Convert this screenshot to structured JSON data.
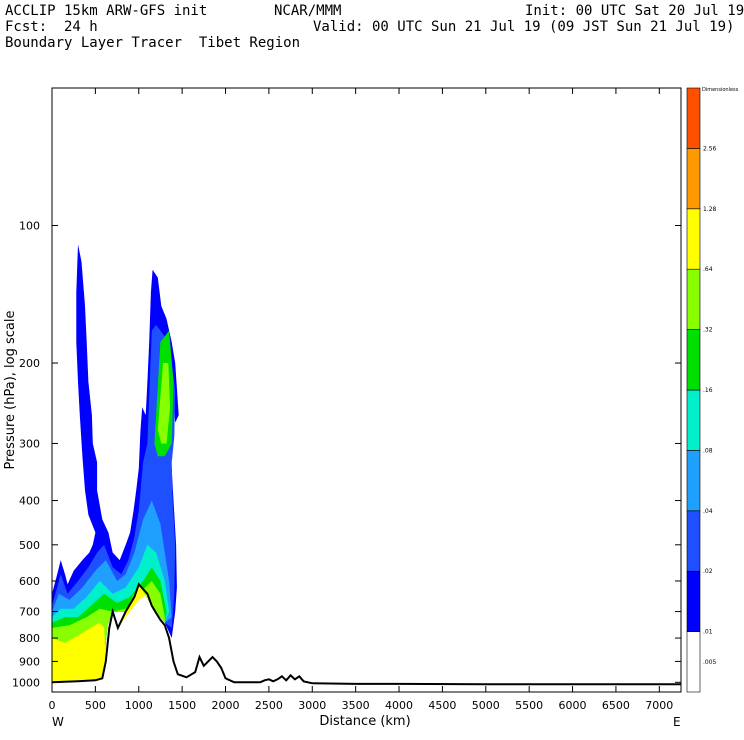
{
  "header": {
    "model": "ACCLIP 15km ARW-GFS init",
    "org": "NCAR/MMM",
    "init": "Init: 00 UTC Sat 20 Jul 19",
    "fcst": "Fcst:  24 h",
    "valid": "Valid: 00 UTC Sun 21 Jul 19 (09 JST Sun 21 Jul 19)",
    "field": "Boundary Layer Tracer  Tibet Region"
  },
  "chart_data": {
    "type": "heatmap",
    "title": "Boundary Layer Tracer  Tibet Region",
    "xlabel": "Distance (km)",
    "ylabel": "Pressure (hPa), log scale",
    "x_ticks": [
      0,
      500,
      1000,
      1500,
      2000,
      2500,
      3000,
      3500,
      4000,
      4500,
      5000,
      5500,
      6000,
      6500,
      7000
    ],
    "xlim": [
      0,
      7250
    ],
    "y_ticks": [
      100,
      200,
      300,
      400,
      500,
      600,
      700,
      800,
      900,
      1000
    ],
    "ylim": [
      1050,
      50
    ],
    "y_scale": "log",
    "x_end_labels": {
      "left": "W",
      "right": "E"
    },
    "colorbar": {
      "title": "Dimensionless",
      "levels": [
        ".005",
        ".01",
        ".02",
        ".04",
        ".08",
        ".16",
        ".32",
        ".64",
        "1.28",
        "2.56"
      ],
      "colors": [
        "#ffffff",
        "#0000ff",
        "#1e50ff",
        "#1fa0ff",
        "#00f0cc",
        "#00e000",
        "#88ff00",
        "#ffff00",
        "#ff9900",
        "#ff5000"
      ]
    },
    "terrain": {
      "x": [
        0,
        300,
        500,
        580,
        620,
        660,
        700,
        760,
        850,
        950,
        1000,
        1050,
        1100,
        1150,
        1200,
        1250,
        1300,
        1350,
        1400,
        1450,
        1550,
        1650,
        1700,
        1750,
        1800,
        1850,
        1900,
        1950,
        2000,
        2100,
        2200,
        2300,
        2400,
        2450,
        2500,
        2550,
        2600,
        2650,
        2700,
        2750,
        2800,
        2850,
        2900,
        3000,
        3500,
        4000,
        5000,
        6000,
        7000,
        7250
      ],
      "p": [
        1000,
        995,
        990,
        980,
        900,
        760,
        700,
        760,
        700,
        650,
        610,
        625,
        640,
        680,
        705,
        730,
        750,
        800,
        900,
        960,
        975,
        950,
        880,
        920,
        900,
        880,
        900,
        930,
        980,
        1000,
        1000,
        1000,
        1000,
        990,
        985,
        995,
        985,
        970,
        990,
        965,
        985,
        970,
        995,
        1005,
        1008,
        1008,
        1010,
        1010,
        1010,
        1010
      ]
    },
    "tracer_regions": [
      {
        "level": ".01",
        "outline": [
          [
            0,
            1000
          ],
          [
            0,
            640
          ],
          [
            60,
            580
          ],
          [
            100,
            540
          ],
          [
            150,
            580
          ],
          [
            180,
            610
          ],
          [
            250,
            570
          ],
          [
            350,
            540
          ],
          [
            430,
            520
          ],
          [
            470,
            500
          ],
          [
            500,
            470
          ],
          [
            420,
            430
          ],
          [
            380,
            380
          ],
          [
            350,
            320
          ],
          [
            320,
            260
          ],
          [
            300,
            220
          ],
          [
            280,
            180
          ],
          [
            280,
            140
          ],
          [
            300,
            110
          ],
          [
            340,
            120
          ],
          [
            380,
            150
          ],
          [
            400,
            180
          ],
          [
            420,
            220
          ],
          [
            460,
            260
          ],
          [
            470,
            300
          ],
          [
            520,
            330
          ],
          [
            520,
            380
          ],
          [
            580,
            440
          ],
          [
            650,
            470
          ],
          [
            700,
            520
          ],
          [
            780,
            540
          ],
          [
            850,
            500
          ],
          [
            900,
            470
          ],
          [
            940,
            420
          ],
          [
            970,
            380
          ],
          [
            1000,
            340
          ],
          [
            1020,
            280
          ],
          [
            1040,
            250
          ],
          [
            1080,
            260
          ],
          [
            1100,
            220
          ],
          [
            1120,
            180
          ],
          [
            1140,
            140
          ],
          [
            1160,
            125
          ],
          [
            1220,
            130
          ],
          [
            1260,
            150
          ],
          [
            1320,
            160
          ],
          [
            1380,
            180
          ],
          [
            1420,
            200
          ],
          [
            1460,
            260
          ],
          [
            1420,
            270
          ],
          [
            1400,
            240
          ],
          [
            1380,
            270
          ],
          [
            1360,
            300
          ],
          [
            1380,
            340
          ],
          [
            1400,
            400
          ],
          [
            1430,
            500
          ],
          [
            1440,
            620
          ],
          [
            1420,
            700
          ],
          [
            1380,
            800
          ],
          [
            1300,
            740
          ],
          [
            1150,
            680
          ],
          [
            1000,
            610
          ],
          [
            850,
            700
          ],
          [
            700,
            700
          ],
          [
            640,
            750
          ],
          [
            580,
            980
          ],
          [
            300,
            995
          ]
        ]
      },
      {
        "level": ".02",
        "outline": [
          [
            0,
            1000
          ],
          [
            0,
            680
          ],
          [
            60,
            620
          ],
          [
            100,
            580
          ],
          [
            180,
            640
          ],
          [
            300,
            600
          ],
          [
            420,
            560
          ],
          [
            520,
            520
          ],
          [
            600,
            500
          ],
          [
            700,
            560
          ],
          [
            800,
            580
          ],
          [
            880,
            540
          ],
          [
            950,
            480
          ],
          [
            1000,
            420
          ],
          [
            1050,
            330
          ],
          [
            1100,
            300
          ],
          [
            1150,
            170
          ],
          [
            1200,
            165
          ],
          [
            1300,
            175
          ],
          [
            1380,
            200
          ],
          [
            1420,
            230
          ],
          [
            1410,
            290
          ],
          [
            1380,
            330
          ],
          [
            1390,
            400
          ],
          [
            1420,
            500
          ],
          [
            1410,
            640
          ],
          [
            1380,
            760
          ],
          [
            1300,
            740
          ],
          [
            1150,
            680
          ],
          [
            1000,
            610
          ],
          [
            850,
            700
          ],
          [
            700,
            700
          ],
          [
            640,
            750
          ],
          [
            580,
            980
          ],
          [
            300,
            995
          ]
        ]
      },
      {
        "level": ".04",
        "outline": [
          [
            0,
            1000
          ],
          [
            0,
            700
          ],
          [
            80,
            640
          ],
          [
            200,
            660
          ],
          [
            350,
            620
          ],
          [
            500,
            570
          ],
          [
            620,
            540
          ],
          [
            750,
            600
          ],
          [
            850,
            580
          ],
          [
            950,
            520
          ],
          [
            1050,
            440
          ],
          [
            1150,
            400
          ],
          [
            1250,
            450
          ],
          [
            1300,
            520
          ],
          [
            1350,
            600
          ],
          [
            1380,
            720
          ],
          [
            1300,
            740
          ],
          [
            1150,
            680
          ],
          [
            1000,
            610
          ],
          [
            850,
            700
          ],
          [
            700,
            700
          ],
          [
            640,
            750
          ],
          [
            580,
            980
          ],
          [
            300,
            995
          ]
        ]
      },
      {
        "level": ".08",
        "outline": [
          [
            0,
            1000
          ],
          [
            0,
            720
          ],
          [
            100,
            690
          ],
          [
            250,
            690
          ],
          [
            400,
            650
          ],
          [
            550,
            600
          ],
          [
            700,
            640
          ],
          [
            850,
            620
          ],
          [
            1000,
            560
          ],
          [
            1100,
            500
          ],
          [
            1200,
            520
          ],
          [
            1300,
            600
          ],
          [
            1350,
            700
          ],
          [
            1300,
            740
          ],
          [
            1150,
            680
          ],
          [
            1000,
            610
          ],
          [
            850,
            700
          ],
          [
            700,
            700
          ],
          [
            640,
            750
          ],
          [
            580,
            980
          ],
          [
            300,
            995
          ]
        ]
      },
      {
        "level": ".16",
        "outline": [
          [
            0,
            1000
          ],
          [
            0,
            740
          ],
          [
            150,
            720
          ],
          [
            300,
            720
          ],
          [
            450,
            680
          ],
          [
            600,
            640
          ],
          [
            750,
            670
          ],
          [
            900,
            650
          ],
          [
            1050,
            600
          ],
          [
            1150,
            560
          ],
          [
            1250,
            600
          ],
          [
            1320,
            700
          ],
          [
            1300,
            740
          ],
          [
            1150,
            680
          ],
          [
            1000,
            610
          ],
          [
            850,
            700
          ],
          [
            700,
            700
          ],
          [
            640,
            750
          ],
          [
            580,
            980
          ],
          [
            300,
            995
          ]
        ]
      },
      {
        "level": ".32",
        "outline": [
          [
            0,
            1000
          ],
          [
            0,
            760
          ],
          [
            200,
            750
          ],
          [
            400,
            720
          ],
          [
            550,
            690
          ],
          [
            700,
            700
          ],
          [
            850,
            690
          ],
          [
            1000,
            640
          ],
          [
            1150,
            600
          ],
          [
            1250,
            640
          ],
          [
            1300,
            720
          ],
          [
            1300,
            740
          ],
          [
            1150,
            680
          ],
          [
            1000,
            610
          ],
          [
            850,
            700
          ],
          [
            700,
            700
          ],
          [
            640,
            750
          ],
          [
            580,
            980
          ],
          [
            300,
            995
          ]
        ]
      },
      {
        "level": ".64",
        "outline": [
          [
            0,
            1000
          ],
          [
            0,
            800
          ],
          [
            150,
            820
          ],
          [
            300,
            790
          ],
          [
            450,
            760
          ],
          [
            550,
            740
          ],
          [
            600,
            760
          ],
          [
            620,
            900
          ],
          [
            580,
            980
          ],
          [
            300,
            995
          ]
        ]
      },
      {
        "level": ".64",
        "outline": [
          [
            760,
            760
          ],
          [
            850,
            720
          ],
          [
            1000,
            660
          ],
          [
            1100,
            640
          ],
          [
            1150,
            680
          ],
          [
            1000,
            610
          ],
          [
            850,
            700
          ]
        ]
      },
      {
        "level": ".16",
        "outline": [
          [
            1180,
            300
          ],
          [
            1250,
            180
          ],
          [
            1350,
            170
          ],
          [
            1400,
            220
          ],
          [
            1380,
            300
          ],
          [
            1300,
            320
          ],
          [
            1220,
            320
          ]
        ]
      },
      {
        "level": ".32",
        "outline": [
          [
            1220,
            280
          ],
          [
            1280,
            200
          ],
          [
            1340,
            200
          ],
          [
            1360,
            250
          ],
          [
            1320,
            300
          ],
          [
            1260,
            300
          ]
        ]
      }
    ]
  }
}
